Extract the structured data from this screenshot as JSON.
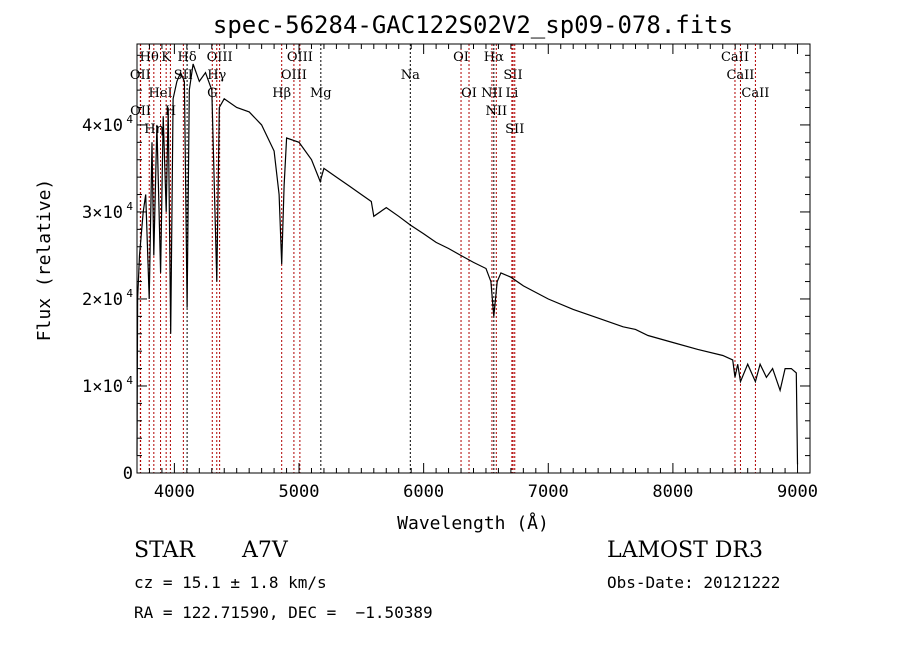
{
  "chart_data": {
    "type": "line",
    "title": "spec-56284-GAC122S02V2_sp09-078.fits",
    "xlabel": "Wavelength (Å)",
    "ylabel": "Flux (relative)",
    "xlim": [
      3700,
      9100
    ],
    "ylim": [
      0,
      49300
    ],
    "xticks": [
      4000,
      5000,
      6000,
      7000,
      8000,
      9000
    ],
    "yticks": [
      {
        "value": 0,
        "label": "0"
      },
      {
        "value": 10000,
        "label": "1×10",
        "exp": "4"
      },
      {
        "value": 20000,
        "label": "2×10",
        "exp": "4"
      },
      {
        "value": 30000,
        "label": "3×10",
        "exp": "4"
      },
      {
        "value": 40000,
        "label": "4×10",
        "exp": "4"
      }
    ],
    "grid": false,
    "series": [
      {
        "name": "spectrum",
        "color": "#000000",
        "x": [
          3700,
          3705,
          3720,
          3750,
          3770,
          3798,
          3820,
          3835,
          3860,
          3889,
          3910,
          3934,
          3950,
          3970,
          3990,
          4020,
          4050,
          4080,
          4102,
          4120,
          4150,
          4200,
          4250,
          4300,
          4340,
          4360,
          4400,
          4500,
          4600,
          4700,
          4800,
          4840,
          4861,
          4880,
          4900,
          5000,
          5100,
          5170,
          5200,
          5300,
          5400,
          5500,
          5580,
          5600,
          5700,
          5800,
          5893,
          6000,
          6100,
          6200,
          6300,
          6400,
          6500,
          6540,
          6563,
          6590,
          6620,
          6700,
          6800,
          7000,
          7200,
          7400,
          7600,
          7700,
          7800,
          8000,
          8200,
          8400,
          8480,
          8498,
          8520,
          8542,
          8600,
          8662,
          8700,
          8750,
          8800,
          8860,
          8900,
          8950,
          8990,
          9000
        ],
        "y": [
          2000,
          20000,
          25000,
          30000,
          32000,
          20000,
          38000,
          25000,
          40000,
          23000,
          41000,
          30000,
          42000,
          16000,
          43000,
          45000,
          46000,
          45000,
          19000,
          44000,
          47000,
          45000,
          46000,
          44000,
          22000,
          42000,
          43000,
          42000,
          41500,
          40000,
          37000,
          32000,
          24000,
          33000,
          38500,
          38000,
          36000,
          33500,
          35000,
          34000,
          33000,
          32000,
          31200,
          29500,
          30500,
          29500,
          28500,
          27500,
          26500,
          25800,
          25000,
          24200,
          23500,
          22000,
          18000,
          22000,
          23000,
          22500,
          21500,
          20000,
          18800,
          17800,
          16800,
          16500,
          15800,
          15000,
          14200,
          13500,
          13000,
          11000,
          12500,
          10500,
          12500,
          10500,
          12500,
          11000,
          12000,
          9500,
          12000,
          12000,
          11500,
          1000
        ]
      }
    ],
    "lines": [
      {
        "label": "Hθ",
        "wave": 3798,
        "row": 1,
        "color": "#b00000"
      },
      {
        "label": "K",
        "wave": 3934,
        "row": 1,
        "color": "#b00000"
      },
      {
        "label": "Hδ",
        "wave": 4102,
        "row": 1,
        "color": "#000000"
      },
      {
        "label": "OIII",
        "wave": 4363,
        "row": 1,
        "color": "#b00000"
      },
      {
        "label": "OIII",
        "wave": 5007,
        "row": 1,
        "color": "#b00000"
      },
      {
        "label": "OI",
        "wave": 6300,
        "row": 1,
        "color": "#b00000"
      },
      {
        "label": "Hα",
        "wave": 6563,
        "row": 1,
        "color": "#000000"
      },
      {
        "label": "SII",
        "wave": 6717,
        "row": 1,
        "color": "#b00000"
      },
      {
        "label": "CaII",
        "wave": 8498,
        "row": 1,
        "color": "#b00000"
      },
      {
        "label": "OII",
        "wave": 3727,
        "row": 2,
        "color": "#b00000"
      },
      {
        "label": "HeI",
        "wave": 3889,
        "row": 2,
        "color": "#b00000"
      },
      {
        "label": "SII",
        "wave": 4072,
        "row": 2,
        "color": "#b00000"
      },
      {
        "label": "Hγ",
        "wave": 4340,
        "row": 2,
        "color": "#b00000"
      },
      {
        "label": "OIII",
        "wave": 4959,
        "row": 2,
        "color": "#b00000"
      },
      {
        "label": "Na",
        "wave": 5893,
        "row": 2,
        "color": "#000000"
      },
      {
        "label": "NII",
        "wave": 6548,
        "row": 2,
        "color": "#b00000"
      },
      {
        "label": "Li",
        "wave": 6708,
        "row": 2,
        "color": "#b00000"
      },
      {
        "label": "CaII",
        "wave": 8542,
        "row": 2,
        "color": "#b00000"
      },
      {
        "label": "OII",
        "wave": 3729,
        "row": 3,
        "color": "#b00000"
      },
      {
        "label": "Hη",
        "wave": 3835,
        "row": 3,
        "color": "#b00000"
      },
      {
        "label": "H",
        "wave": 3968,
        "row": 3,
        "color": "#b00000"
      },
      {
        "label": "G",
        "wave": 4304,
        "row": 3,
        "color": "#b00000"
      },
      {
        "label": "Hβ",
        "wave": 4861,
        "row": 3,
        "color": "#b00000"
      },
      {
        "label": "Mg",
        "wave": 5175,
        "row": 3,
        "color": "#000000"
      },
      {
        "label": "OI",
        "wave": 6364,
        "row": 3,
        "color": "#b00000"
      },
      {
        "label": "NII",
        "wave": 6583,
        "row": 3,
        "color": "#b00000"
      },
      {
        "label": "SII",
        "wave": 6731,
        "row": 3,
        "color": "#b00000"
      },
      {
        "label": "CaII",
        "wave": 8662,
        "row": 3,
        "color": "#b00000"
      }
    ]
  },
  "info": {
    "class": "STAR",
    "subclass": "A7V",
    "cz": "cz = 15.1 ± 1.8 km/s",
    "coords": "RA = 122.71590, DEC =  −1.50389",
    "survey": "LAMOST DR3",
    "obs_date": "Obs-Date: 20121222"
  }
}
